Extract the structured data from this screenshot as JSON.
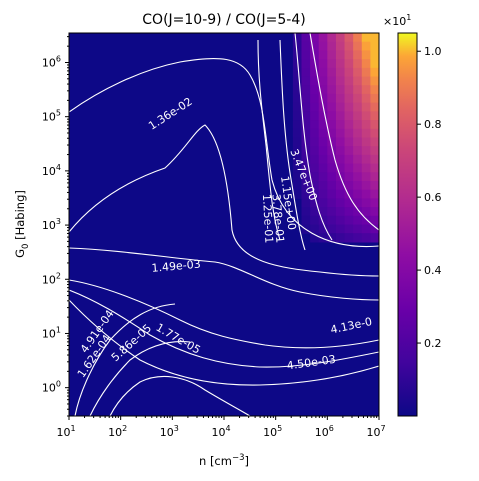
{
  "chart_data": {
    "type": "heatmap",
    "title": "CO(J=10-9) / CO(J=5-4)",
    "xlabel": "n [cm",
    "xlabel_sup": "−3",
    "xlabel_end": "]",
    "ylabel": "G",
    "ylabel_sub": "0",
    "ylabel_end": " [Habing]",
    "x_scale": "log",
    "y_scale": "log",
    "xlim": [
      10,
      10000000
    ],
    "ylim": [
      0.3,
      3500000
    ],
    "x_ticks": [
      {
        "value": 10,
        "base": "10",
        "exp": "1"
      },
      {
        "value": 100,
        "base": "10",
        "exp": "2"
      },
      {
        "value": 1000,
        "base": "10",
        "exp": "3"
      },
      {
        "value": 10000,
        "base": "10",
        "exp": "4"
      },
      {
        "value": 100000,
        "base": "10",
        "exp": "5"
      },
      {
        "value": 1000000,
        "base": "10",
        "exp": "6"
      },
      {
        "value": 10000000,
        "base": "10",
        "exp": "7"
      }
    ],
    "y_ticks": [
      {
        "value": 1,
        "base": "10",
        "exp": "0"
      },
      {
        "value": 10,
        "base": "10",
        "exp": "1"
      },
      {
        "value": 100,
        "base": "10",
        "exp": "2"
      },
      {
        "value": 1000,
        "base": "10",
        "exp": "3"
      },
      {
        "value": 10000,
        "base": "10",
        "exp": "4"
      },
      {
        "value": 100000,
        "base": "10",
        "exp": "5"
      },
      {
        "value": 1000000,
        "base": "10",
        "exp": "6"
      }
    ],
    "colorbar": {
      "colormap": "plasma",
      "min": 0.0,
      "max": 1.05,
      "ticks": [
        "0.2",
        "0.4",
        "0.6",
        "0.8",
        "1.0"
      ],
      "tick_values": [
        0.2,
        0.4,
        0.6,
        0.8,
        1.0
      ],
      "multiplier_base": "×10",
      "multiplier_exp": "1"
    },
    "contour_labels": [
      {
        "text": "1.36e-02",
        "x": 1000,
        "y": 100000,
        "angle": -33
      },
      {
        "text": "3.47e+00",
        "x": 300000,
        "y": 8000,
        "angle": 68
      },
      {
        "text": "1.15e+00",
        "x": 150000,
        "y": 2500,
        "angle": 82
      },
      {
        "text": "3.78e-01",
        "x": 95000,
        "y": 1300,
        "angle": 85
      },
      {
        "text": "1.25e-01",
        "x": 60000,
        "y": 1300,
        "angle": 87
      },
      {
        "text": "1.49e-03",
        "x": 1200,
        "y": 150,
        "angle": -5
      },
      {
        "text": "4.13e-0",
        "x": 3000000,
        "y": 12,
        "angle": -12
      },
      {
        "text": "4.50e-03",
        "x": 500000,
        "y": 2.5,
        "angle": -8
      },
      {
        "text": "1.77e-05",
        "x": 1200,
        "y": 7,
        "angle": 30
      },
      {
        "text": "4.91e-04",
        "x": 40,
        "y": 10,
        "angle": -55
      },
      {
        "text": "1.62e-04",
        "x": 35,
        "y": 3.5,
        "angle": -55
      },
      {
        "text": "5.86e-05",
        "x": 180,
        "y": 6,
        "angle": -42
      }
    ],
    "heatmap_description_values": {
      "peak_value": 1.05,
      "peak_location": {
        "n": 10000000,
        "G0": 3500000
      },
      "background_value": 0.0
    },
    "grid": false
  }
}
